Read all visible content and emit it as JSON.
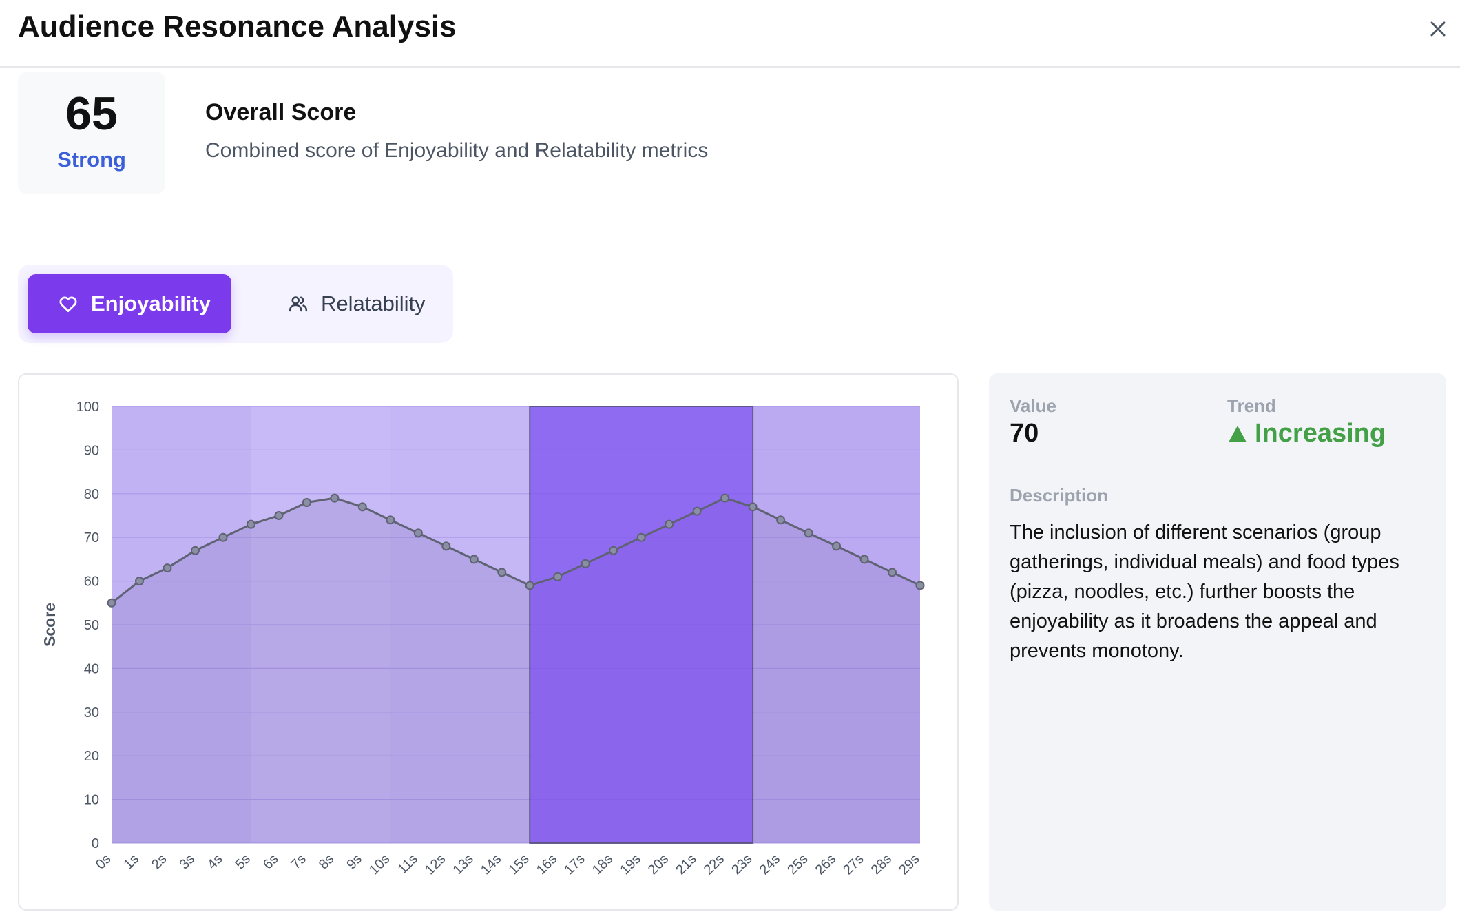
{
  "header": {
    "title": "Audience Resonance Analysis",
    "close_icon": "close-icon"
  },
  "overall": {
    "score": "65",
    "rating": "Strong",
    "title": "Overall Score",
    "description": "Combined score of Enjoyability and Relatability metrics"
  },
  "tabs": [
    {
      "label": "Enjoyability",
      "icon": "heart-icon",
      "active": true
    },
    {
      "label": "Relatability",
      "icon": "users-icon",
      "active": false
    }
  ],
  "details": {
    "value_label": "Value",
    "value": "70",
    "trend_label": "Trend",
    "trend": "Increasing",
    "description_label": "Description",
    "description": "The inclusion of different scenarios (group gatherings, individual meals) and food types (pizza, noodles, etc.) further boosts the enjoyability as it broadens the appeal and prevents monotony."
  },
  "colors": {
    "accent": "#7c3aed",
    "rating": "#3b5fd9",
    "trend_up": "#43a047",
    "highlight": "#8e6cf0",
    "band": "#c7b8f6"
  },
  "chart_data": {
    "type": "area",
    "ylabel": "Score",
    "ylim": [
      0,
      100
    ],
    "yticks": [
      0,
      10,
      20,
      30,
      40,
      50,
      60,
      70,
      80,
      90,
      100
    ],
    "grid": true,
    "x": [
      "0s",
      "1s",
      "2s",
      "3s",
      "4s",
      "5s",
      "6s",
      "7s",
      "8s",
      "9s",
      "10s",
      "11s",
      "12s",
      "13s",
      "14s",
      "15s",
      "16s",
      "17s",
      "18s",
      "19s",
      "20s",
      "21s",
      "22s",
      "23s",
      "24s",
      "25s",
      "26s",
      "27s",
      "28s",
      "29s"
    ],
    "series": [
      {
        "values": [
          55,
          60,
          63,
          67,
          70,
          73,
          75,
          78,
          79,
          77,
          74,
          71,
          68,
          65,
          62,
          59,
          61,
          64,
          67,
          70,
          73,
          76,
          79,
          77,
          74,
          71,
          68,
          65,
          62,
          59
        ]
      }
    ],
    "highlight_range": [
      "15s",
      "23s"
    ]
  }
}
